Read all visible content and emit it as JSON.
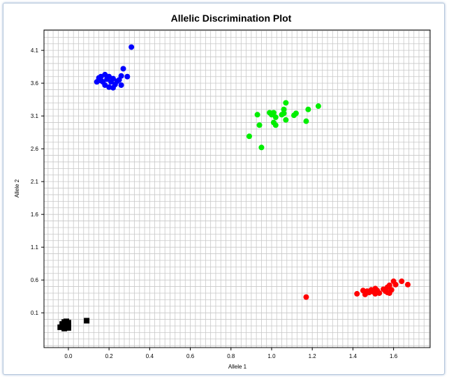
{
  "chart_data": {
    "type": "scatter",
    "title": "Allelic Discrimination Plot",
    "xlabel": "Allele 1",
    "ylabel": "Allele 2",
    "xlim": [
      -0.12,
      1.78
    ],
    "ylim": [
      -0.43,
      4.41
    ],
    "xticks": [
      {
        "value": 0.0,
        "label": "0.0"
      },
      {
        "value": 0.2,
        "label": "0.2"
      },
      {
        "value": 0.4,
        "label": "0.4"
      },
      {
        "value": 0.6,
        "label": "0.6"
      },
      {
        "value": 0.8,
        "label": "0.8"
      },
      {
        "value": 1.0,
        "label": "1.0"
      },
      {
        "value": 1.2,
        "label": "1.2"
      },
      {
        "value": 1.4,
        "label": "1.4"
      },
      {
        "value": 1.6,
        "label": "1.6"
      }
    ],
    "yticks": [
      {
        "value": 0.1,
        "label": "0.1"
      },
      {
        "value": 0.6,
        "label": "0.6"
      },
      {
        "value": 1.1,
        "label": "1.1"
      },
      {
        "value": 1.6,
        "label": "1.6"
      },
      {
        "value": 2.1,
        "label": "2.1"
      },
      {
        "value": 2.6,
        "label": "2.6"
      },
      {
        "value": 3.1,
        "label": "3.1"
      },
      {
        "value": 3.6,
        "label": "3.6"
      },
      {
        "value": 4.1,
        "label": "4.1"
      }
    ],
    "grid": true,
    "series": [
      {
        "color": "#0000ff",
        "marker": "circle",
        "points": [
          [
            0.31,
            4.15
          ],
          [
            0.27,
            3.82
          ],
          [
            0.29,
            3.7
          ],
          [
            0.26,
            3.71
          ],
          [
            0.25,
            3.65
          ],
          [
            0.22,
            3.67
          ],
          [
            0.24,
            3.63
          ],
          [
            0.2,
            3.7
          ],
          [
            0.18,
            3.73
          ],
          [
            0.16,
            3.7
          ],
          [
            0.15,
            3.68
          ],
          [
            0.14,
            3.62
          ],
          [
            0.16,
            3.64
          ],
          [
            0.19,
            3.66
          ],
          [
            0.21,
            3.62
          ],
          [
            0.23,
            3.58
          ],
          [
            0.18,
            3.57
          ],
          [
            0.2,
            3.54
          ],
          [
            0.22,
            3.53
          ],
          [
            0.26,
            3.57
          ],
          [
            0.17,
            3.62
          ]
        ]
      },
      {
        "color": "#00ee00",
        "marker": "circle",
        "points": [
          [
            1.07,
            3.3
          ],
          [
            1.23,
            3.25
          ],
          [
            1.18,
            3.2
          ],
          [
            1.06,
            3.2
          ],
          [
            0.99,
            3.15
          ],
          [
            1.01,
            3.15
          ],
          [
            1.06,
            3.14
          ],
          [
            1.12,
            3.14
          ],
          [
            0.93,
            3.12
          ],
          [
            1.0,
            3.12
          ],
          [
            1.05,
            3.12
          ],
          [
            1.11,
            3.11
          ],
          [
            1.02,
            3.08
          ],
          [
            1.07,
            3.04
          ],
          [
            1.17,
            3.02
          ],
          [
            1.01,
            3.0
          ],
          [
            1.02,
            2.96
          ],
          [
            0.94,
            2.96
          ],
          [
            0.89,
            2.79
          ],
          [
            0.95,
            2.62
          ]
        ]
      },
      {
        "color": "#ff0000",
        "marker": "circle",
        "points": [
          [
            1.17,
            0.34
          ],
          [
            1.42,
            0.39
          ],
          [
            1.45,
            0.44
          ],
          [
            1.46,
            0.38
          ],
          [
            1.47,
            0.43
          ],
          [
            1.48,
            0.41
          ],
          [
            1.49,
            0.45
          ],
          [
            1.5,
            0.42
          ],
          [
            1.51,
            0.47
          ],
          [
            1.51,
            0.39
          ],
          [
            1.52,
            0.44
          ],
          [
            1.53,
            0.4
          ],
          [
            1.55,
            0.46
          ],
          [
            1.56,
            0.43
          ],
          [
            1.57,
            0.41
          ],
          [
            1.57,
            0.49
          ],
          [
            1.58,
            0.52
          ],
          [
            1.59,
            0.45
          ],
          [
            1.6,
            0.58
          ],
          [
            1.61,
            0.53
          ],
          [
            1.64,
            0.58
          ],
          [
            1.67,
            0.53
          ],
          [
            1.58,
            0.4
          ]
        ]
      },
      {
        "color": "#000000",
        "marker": "square",
        "points": [
          [
            0.09,
            -0.02
          ],
          [
            -0.02,
            -0.04
          ],
          [
            -0.01,
            -0.06
          ],
          [
            0.0,
            -0.05
          ],
          [
            -0.03,
            -0.08
          ],
          [
            -0.01,
            -0.1
          ],
          [
            0.0,
            -0.09
          ],
          [
            -0.02,
            -0.11
          ],
          [
            -0.04,
            -0.12
          ],
          [
            -0.02,
            -0.14
          ],
          [
            0.0,
            -0.13
          ],
          [
            -0.03,
            -0.07
          ],
          [
            -0.01,
            -0.03
          ]
        ]
      }
    ]
  }
}
